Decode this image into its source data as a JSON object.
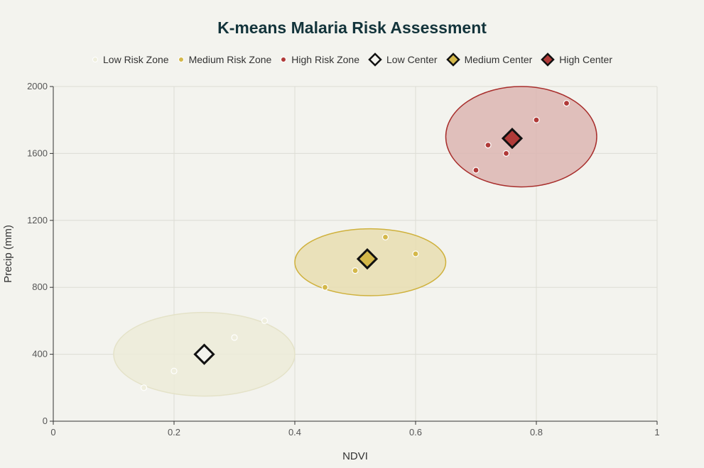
{
  "chart_data": {
    "type": "scatter",
    "title": "K-means Malaria Risk Assessment",
    "xlabel": "NDVI",
    "ylabel": "Precip (mm)",
    "xlim": [
      0,
      1
    ],
    "ylim": [
      0,
      2000
    ],
    "x_ticks": [
      0,
      0.2,
      0.4,
      0.6,
      0.8,
      1
    ],
    "x_tick_labels": [
      "0",
      "0.2",
      "0.4",
      "0.6",
      "0.8",
      "1"
    ],
    "y_ticks": [
      0,
      400,
      800,
      1200,
      1600,
      2000
    ],
    "y_tick_labels": [
      "0",
      "400",
      "800",
      "1200",
      "1600",
      "2000"
    ],
    "grid": true,
    "legend_position": "top",
    "series": [
      {
        "name": "Low Risk Zone",
        "marker": "circle",
        "color": "#efeedd",
        "points": [
          [
            0.15,
            200
          ],
          [
            0.2,
            300
          ],
          [
            0.3,
            500
          ],
          [
            0.35,
            600
          ]
        ]
      },
      {
        "name": "Medium Risk Zone",
        "marker": "circle",
        "color": "#d4b84a",
        "points": [
          [
            0.45,
            800
          ],
          [
            0.5,
            900
          ],
          [
            0.55,
            1100
          ],
          [
            0.6,
            1000
          ]
        ]
      },
      {
        "name": "High Risk Zone",
        "marker": "circle",
        "color": "#b03a38",
        "points": [
          [
            0.7,
            1500
          ],
          [
            0.72,
            1650
          ],
          [
            0.75,
            1600
          ],
          [
            0.8,
            1800
          ],
          [
            0.85,
            1900
          ]
        ]
      },
      {
        "name": "Low Center",
        "marker": "diamond",
        "color": "#f3f3ee",
        "points": [
          [
            0.25,
            400
          ]
        ]
      },
      {
        "name": "Medium Center",
        "marker": "diamond",
        "color": "#d4b84a",
        "points": [
          [
            0.52,
            970
          ]
        ]
      },
      {
        "name": "High Center",
        "marker": "diamond",
        "color": "#b03a38",
        "points": [
          [
            0.76,
            1690
          ]
        ]
      }
    ],
    "clusters": [
      {
        "center": [
          0.25,
          400
        ],
        "radius_x": 0.15,
        "radius_y": 250,
        "fill": "#ecebd8",
        "stroke": "#e4e2c8"
      },
      {
        "center": [
          0.525,
          950
        ],
        "radius_x": 0.125,
        "radius_y": 200,
        "fill": "#e8ddb0",
        "stroke": "#cfb13c"
      },
      {
        "center": [
          0.775,
          1700
        ],
        "radius_x": 0.125,
        "radius_y": 300,
        "fill": "#dcb5b2",
        "stroke": "#a82e2c"
      }
    ]
  }
}
